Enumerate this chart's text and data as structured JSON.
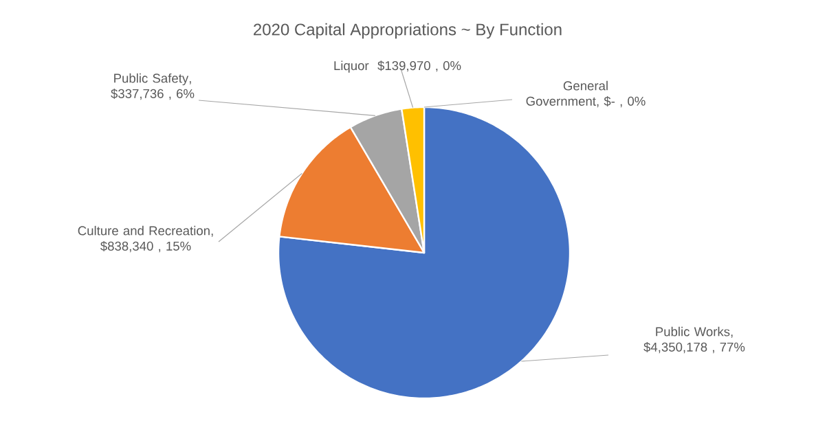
{
  "chart_data": {
    "type": "pie",
    "title": "2020 Capital Appropriations ~ By Function",
    "categories": [
      "Public Works",
      "Culture and Recreation",
      "Public Safety",
      "Liquor",
      "General Government"
    ],
    "values": [
      4350178,
      838340,
      337736,
      139970,
      0
    ],
    "value_labels": [
      ", $4,350,178 , 77%",
      ", $838,340 , 15%",
      ", $337,736 , 6%",
      "$139,970 , 0%",
      ", $- , 0%"
    ],
    "colors": [
      "#4472c4",
      "#ed7d31",
      "#a5a5a5",
      "#ffc000",
      "#5b9bd5"
    ]
  }
}
